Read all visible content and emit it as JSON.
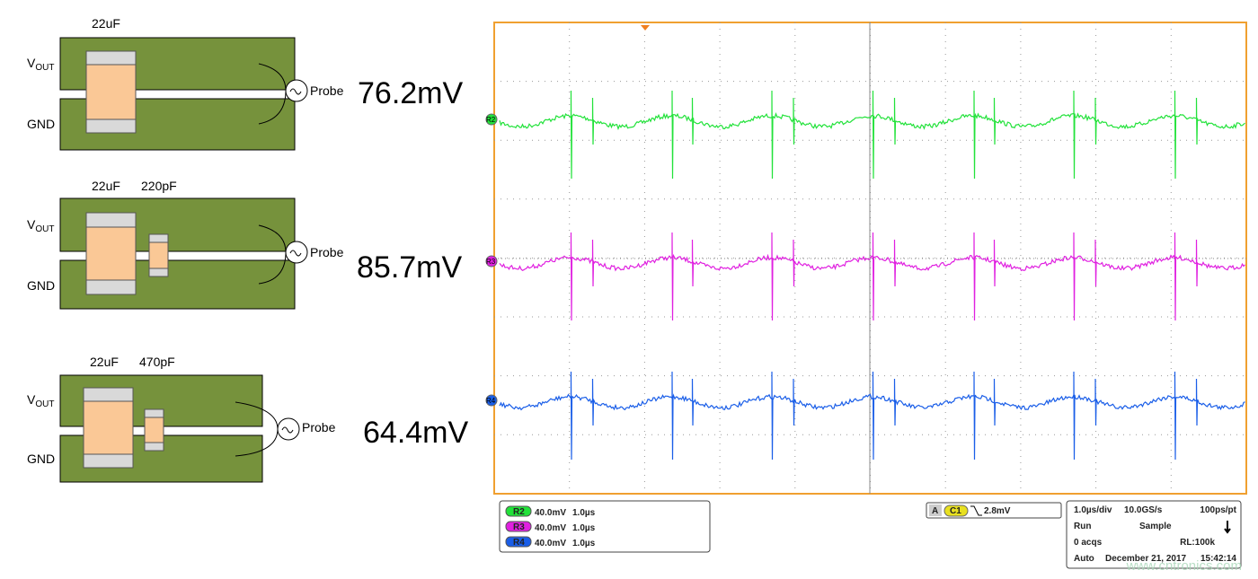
{
  "diagrams": [
    {
      "parts": [
        "22uF"
      ],
      "vout": {
        "main": "V",
        "sub": "OUT"
      },
      "gnd": "GND",
      "probe": "Probe",
      "measurement": "76.2mV"
    },
    {
      "parts": [
        "22uF",
        "220pF"
      ],
      "vout": {
        "main": "V",
        "sub": "OUT"
      },
      "gnd": "GND",
      "probe": "Probe",
      "measurement": "85.7mV"
    },
    {
      "parts": [
        "22uF",
        "470pF"
      ],
      "vout": {
        "main": "V",
        "sub": "OUT"
      },
      "gnd": "GND",
      "probe": "Probe",
      "measurement": "64.4mV"
    }
  ],
  "scope": {
    "channels": [
      {
        "name": "R2",
        "scale": "40.0mV",
        "time": "1.0µs",
        "color": "#22e23a"
      },
      {
        "name": "R3",
        "scale": "40.0mV",
        "time": "1.0µs",
        "color": "#e020e0"
      },
      {
        "name": "R4",
        "scale": "40.0mV",
        "time": "1.0µs",
        "color": "#1a5ee8"
      }
    ],
    "trigger": {
      "mode": "A",
      "source": "C1",
      "level": "2.8mV"
    },
    "acquisition": {
      "timebase": "1.0µs/div",
      "rate": "10.0GS/s",
      "resolution": "100ps/pt",
      "state": "Run",
      "mode": "Sample",
      "acqs": "0 acqs",
      "record": "RL:100k",
      "trigger_mode": "Auto",
      "date": "December 21, 2017",
      "time": "15:42:14"
    },
    "watermark": "www.cntronics.com"
  }
}
